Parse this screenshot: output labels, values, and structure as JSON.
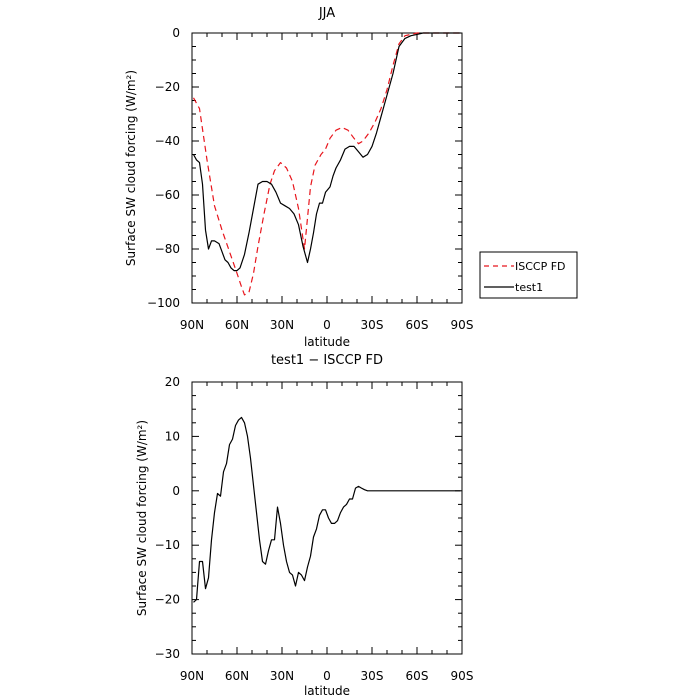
{
  "chart_data": [
    {
      "type": "line",
      "title": "JJA",
      "xlabel": "latitude",
      "ylabel": "Surface SW cloud forcing (W/m²)",
      "xlim": [
        90,
        -90
      ],
      "ylim": [
        -100,
        0
      ],
      "xticks": [
        90,
        60,
        30,
        0,
        -30,
        -60,
        -90
      ],
      "xtick_labels": [
        "90N",
        "60N",
        "30N",
        "0",
        "30S",
        "60S",
        "90S"
      ],
      "yticks": [
        0,
        -20,
        -40,
        -60,
        -80,
        -100
      ],
      "ytick_labels": [
        "0",
        "−20",
        "−40",
        "−60",
        "−80",
        "−100"
      ],
      "legend": "outside-right",
      "series": [
        {
          "name": "ISCCP FD",
          "color": "#e8161d",
          "dash": "dashed",
          "x": [
            89,
            85,
            80,
            75,
            70,
            65,
            60,
            57,
            55,
            52,
            49,
            46,
            42,
            38,
            35,
            31,
            27,
            23,
            19,
            15,
            11,
            8,
            6,
            4,
            1,
            -2,
            -6,
            -10,
            -14,
            -18,
            -21,
            -24,
            -28,
            -32,
            -36,
            -40,
            -44,
            -48,
            -52,
            -56,
            -60,
            -64,
            -67,
            -70,
            -75,
            -80,
            -85,
            -89
          ],
          "y": [
            -24,
            -28,
            -47,
            -64,
            -73,
            -81,
            -89,
            -94,
            -97,
            -96,
            -89,
            -79,
            -67,
            -56,
            -51,
            -48,
            -50,
            -55,
            -65,
            -80,
            -57,
            -49,
            -47,
            -45,
            -43,
            -39,
            -36,
            -35,
            -36,
            -39,
            -41,
            -40,
            -37,
            -33,
            -28,
            -21,
            -12,
            -4,
            -1,
            -0.5,
            0,
            0,
            0,
            0,
            0,
            0,
            0,
            0
          ]
        },
        {
          "name": "test1",
          "color": "#000000",
          "dash": "solid",
          "x": [
            89,
            87,
            85,
            83,
            81,
            79,
            77,
            75,
            72,
            70,
            68,
            66,
            64,
            62,
            60,
            58,
            55,
            52,
            49,
            46,
            43,
            40,
            37,
            34,
            31,
            28,
            25,
            22,
            19,
            16,
            13,
            11,
            9,
            7,
            5,
            3,
            1,
            -2,
            -4,
            -6,
            -9,
            -12,
            -15,
            -18,
            -21,
            -24,
            -27,
            -30,
            -33,
            -36,
            -40,
            -44,
            -48,
            -52,
            -56,
            -60,
            -64,
            -67,
            -70,
            -75,
            -80,
            -85,
            -89
          ],
          "y": [
            -45,
            -47,
            -48,
            -56,
            -73,
            -80,
            -77,
            -77,
            -78,
            -81,
            -84,
            -85,
            -87,
            -88,
            -88,
            -87,
            -82,
            -74,
            -65,
            -56,
            -55,
            -55,
            -56,
            -59,
            -63,
            -64,
            -65,
            -67,
            -71,
            -79,
            -85,
            -80,
            -74,
            -67,
            -63,
            -63,
            -59,
            -57,
            -53,
            -50,
            -47,
            -43,
            -42,
            -42,
            -44,
            -46,
            -45,
            -42,
            -37,
            -31,
            -23,
            -15,
            -5,
            -2,
            -1,
            -0.5,
            0,
            0,
            0,
            0,
            0,
            0,
            0
          ]
        }
      ]
    },
    {
      "type": "line",
      "title": "test1 − ISCCP FD",
      "xlabel": "latitude",
      "ylabel": "Surface SW cloud forcing (W/m²)",
      "xlim": [
        90,
        -90
      ],
      "ylim": [
        -30,
        20
      ],
      "xticks": [
        90,
        60,
        30,
        0,
        -30,
        -60,
        -90
      ],
      "xtick_labels": [
        "90N",
        "60N",
        "30N",
        "0",
        "30S",
        "60S",
        "90S"
      ],
      "yticks": [
        20,
        10,
        0,
        -10,
        -20,
        -30
      ],
      "ytick_labels": [
        "20",
        "10",
        "0",
        "−10",
        "−20",
        "−30"
      ],
      "series": [
        {
          "color": "#000000",
          "dash": "solid",
          "x": [
            89,
            87,
            85,
            83,
            81,
            79,
            77,
            75,
            73,
            71,
            69,
            67,
            65,
            63,
            61,
            59,
            57,
            55,
            53,
            51,
            49,
            47,
            45,
            43,
            41,
            39,
            37,
            35,
            33,
            31,
            29,
            27,
            25,
            23,
            21,
            19,
            17,
            15,
            13,
            11,
            9,
            7,
            5,
            3,
            1,
            -1,
            -3,
            -5,
            -7,
            -9,
            -11,
            -13,
            -15,
            -17,
            -19,
            -21,
            -23,
            -25,
            -27,
            -29,
            -31,
            -33,
            -35,
            -37,
            -39,
            -41,
            -43,
            -45,
            -47,
            -49,
            -51,
            -53,
            -55,
            -57,
            -59,
            -61,
            -63,
            -65,
            -67,
            -69,
            -72,
            -75,
            -78,
            -81,
            -84,
            -87,
            -89
          ],
          "y": [
            -20.5,
            -20,
            -13,
            -13,
            -18,
            -16,
            -9,
            -4,
            -0.5,
            -1,
            3.5,
            5,
            8.5,
            9.5,
            12,
            13,
            13.5,
            12.5,
            10,
            6,
            1,
            -4,
            -9,
            -13,
            -13.5,
            -11,
            -9,
            -9,
            -3,
            -6,
            -10,
            -13,
            -15,
            -15.5,
            -17.5,
            -15,
            -15.5,
            -16.5,
            -14,
            -12,
            -8.5,
            -7,
            -4.5,
            -3.5,
            -3.5,
            -5,
            -6,
            -6,
            -5.5,
            -4,
            -3,
            -2.5,
            -1.5,
            -1.5,
            0.5,
            0.8,
            0.5,
            0.2,
            0,
            0,
            0,
            0,
            0,
            0,
            0,
            0,
            0,
            0,
            0,
            0,
            0,
            0,
            0,
            0,
            0,
            0,
            0,
            0,
            0,
            0,
            0,
            0,
            0,
            0,
            0,
            0,
            0
          ]
        }
      ]
    }
  ]
}
